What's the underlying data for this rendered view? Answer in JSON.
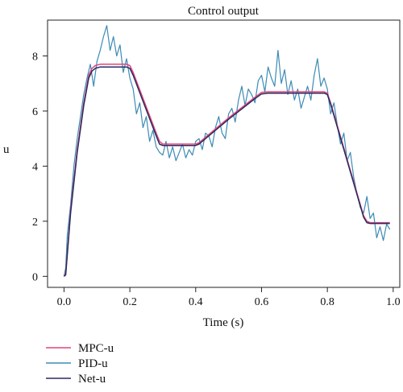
{
  "chart_data": {
    "type": "line",
    "title": "Control output",
    "xlabel": "Time (s)",
    "ylabel": "u",
    "xlim": [
      -0.05,
      1.02
    ],
    "ylim": [
      -0.4,
      9.3
    ],
    "xticks": [
      0.0,
      0.2,
      0.4,
      0.6,
      0.8,
      1.0
    ],
    "xtick_labels": [
      "0.0",
      "0.2",
      "0.4",
      "0.6",
      "0.8",
      "1.0"
    ],
    "yticks": [
      0,
      2,
      4,
      6,
      8
    ],
    "ytick_labels": [
      "0",
      "2",
      "4",
      "6",
      "8"
    ],
    "grid": false,
    "legend_position": "bottom-left",
    "series": [
      {
        "name": "MPC-u",
        "color": "#e0457b",
        "x": [
          0.0,
          0.005,
          0.02,
          0.04,
          0.06,
          0.075,
          0.085,
          0.095,
          0.11,
          0.19,
          0.2,
          0.21,
          0.28,
          0.29,
          0.3,
          0.4,
          0.41,
          0.42,
          0.5,
          0.58,
          0.6,
          0.62,
          0.78,
          0.79,
          0.8,
          0.81,
          0.91,
          0.92,
          0.93,
          0.99
        ],
        "values": [
          0.0,
          0.1,
          2.4,
          4.6,
          6.3,
          7.3,
          7.55,
          7.65,
          7.7,
          7.7,
          7.65,
          7.4,
          5.2,
          4.9,
          4.8,
          4.8,
          4.85,
          4.95,
          5.75,
          6.5,
          6.68,
          6.7,
          6.7,
          6.7,
          6.65,
          6.3,
          2.2,
          2.0,
          1.95,
          1.95
        ]
      },
      {
        "name": "PID-u",
        "color": "#3d8bb5",
        "x": [
          0.0,
          0.005,
          0.01,
          0.02,
          0.03,
          0.04,
          0.05,
          0.06,
          0.07,
          0.08,
          0.09,
          0.1,
          0.11,
          0.12,
          0.13,
          0.14,
          0.15,
          0.16,
          0.17,
          0.18,
          0.19,
          0.2,
          0.21,
          0.22,
          0.23,
          0.24,
          0.25,
          0.26,
          0.27,
          0.28,
          0.29,
          0.3,
          0.31,
          0.32,
          0.33,
          0.34,
          0.35,
          0.36,
          0.37,
          0.38,
          0.39,
          0.4,
          0.41,
          0.42,
          0.43,
          0.44,
          0.45,
          0.46,
          0.47,
          0.48,
          0.49,
          0.5,
          0.51,
          0.52,
          0.53,
          0.54,
          0.55,
          0.56,
          0.57,
          0.58,
          0.59,
          0.6,
          0.61,
          0.62,
          0.63,
          0.64,
          0.65,
          0.66,
          0.67,
          0.68,
          0.69,
          0.7,
          0.71,
          0.72,
          0.73,
          0.74,
          0.75,
          0.76,
          0.77,
          0.78,
          0.79,
          0.8,
          0.81,
          0.82,
          0.83,
          0.84,
          0.85,
          0.86,
          0.87,
          0.88,
          0.89,
          0.9,
          0.91,
          0.92,
          0.93,
          0.94,
          0.95,
          0.96,
          0.97,
          0.98,
          0.99
        ],
        "values": [
          0.0,
          0.3,
          1.5,
          2.6,
          4.0,
          5.0,
          5.8,
          6.6,
          7.2,
          7.7,
          6.9,
          7.8,
          8.2,
          8.7,
          9.1,
          8.2,
          8.7,
          8.0,
          8.4,
          7.4,
          7.9,
          7.2,
          6.8,
          5.9,
          6.3,
          5.4,
          5.8,
          4.9,
          5.3,
          4.7,
          4.5,
          4.4,
          4.9,
          4.3,
          4.7,
          4.2,
          4.5,
          4.8,
          4.3,
          4.6,
          4.4,
          4.9,
          5.0,
          4.6,
          5.2,
          5.1,
          4.7,
          5.4,
          5.8,
          5.2,
          5.0,
          5.9,
          6.1,
          5.6,
          6.4,
          6.9,
          6.2,
          6.8,
          6.6,
          6.3,
          7.1,
          7.3,
          6.7,
          7.6,
          7.2,
          6.9,
          8.2,
          7.0,
          7.5,
          6.6,
          7.1,
          6.4,
          6.8,
          6.1,
          6.5,
          6.9,
          6.4,
          7.3,
          7.9,
          6.9,
          7.2,
          6.8,
          5.9,
          6.3,
          5.5,
          4.8,
          5.2,
          4.2,
          4.5,
          3.6,
          3.0,
          2.5,
          2.3,
          2.9,
          2.1,
          2.3,
          1.4,
          1.8,
          1.3,
          1.9,
          1.7
        ]
      },
      {
        "name": "Net-u",
        "color": "#2a2a5e",
        "x": [
          0.0,
          0.005,
          0.02,
          0.04,
          0.06,
          0.075,
          0.085,
          0.095,
          0.11,
          0.19,
          0.2,
          0.21,
          0.28,
          0.29,
          0.3,
          0.4,
          0.41,
          0.42,
          0.5,
          0.58,
          0.6,
          0.62,
          0.78,
          0.79,
          0.8,
          0.81,
          0.91,
          0.92,
          0.93,
          0.99
        ],
        "values": [
          0.0,
          0.05,
          2.3,
          4.5,
          6.2,
          7.2,
          7.45,
          7.55,
          7.6,
          7.6,
          7.55,
          7.3,
          5.1,
          4.8,
          4.75,
          4.75,
          4.8,
          4.9,
          5.7,
          6.45,
          6.62,
          6.65,
          6.65,
          6.65,
          6.6,
          6.25,
          2.15,
          1.95,
          1.92,
          1.92
        ]
      }
    ]
  }
}
